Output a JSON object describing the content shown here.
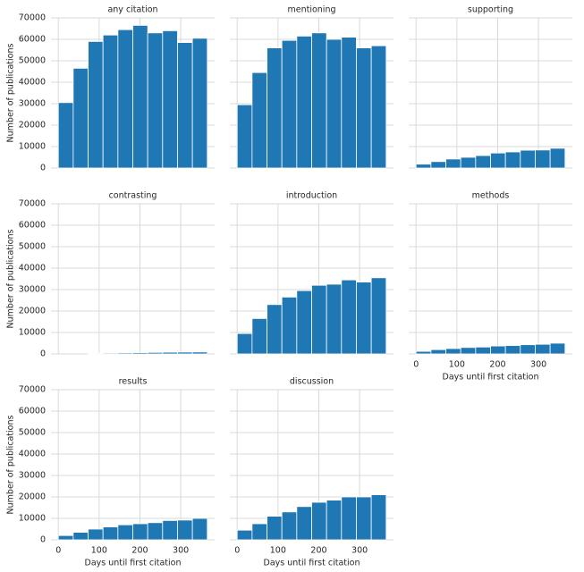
{
  "chart_data": [
    {
      "type": "histogram",
      "title": "any citation",
      "ylabel": "Number of publications",
      "color": "#1f77b4",
      "grid": true,
      "bins": [
        0,
        36.5,
        73,
        109.5,
        146,
        182.5,
        219,
        255.5,
        292,
        328.5,
        365
      ],
      "values": [
        30500,
        46500,
        59000,
        62000,
        64500,
        66500,
        63000,
        64000,
        58500,
        60500
      ],
      "xlim": [
        -18,
        383
      ],
      "ylim": [
        0,
        70000
      ],
      "xticks": [
        0,
        100,
        200,
        300
      ],
      "yticks": [
        0,
        10000,
        20000,
        30000,
        40000,
        50000,
        60000,
        70000
      ]
    },
    {
      "type": "histogram",
      "title": "mentioning",
      "color": "#1f77b4",
      "grid": true,
      "bins": [
        0,
        36.5,
        73,
        109.5,
        146,
        182.5,
        219,
        255.5,
        292,
        328.5,
        365
      ],
      "values": [
        29500,
        44500,
        56000,
        59500,
        61500,
        63000,
        60000,
        61000,
        56000,
        57000
      ],
      "xlim": [
        -18,
        383
      ],
      "ylim": [
        0,
        70000
      ],
      "xticks": [
        0,
        100,
        200,
        300
      ],
      "yticks": [
        0,
        10000,
        20000,
        30000,
        40000,
        50000,
        60000,
        70000
      ]
    },
    {
      "type": "histogram",
      "title": "supporting",
      "color": "#1f77b4",
      "grid": true,
      "bins": [
        0,
        36.5,
        73,
        109.5,
        146,
        182.5,
        219,
        255.5,
        292,
        328.5,
        365
      ],
      "values": [
        1800,
        3000,
        4200,
        5000,
        5800,
        7000,
        7500,
        8300,
        8400,
        9200
      ],
      "xlim": [
        -18,
        383
      ],
      "ylim": [
        0,
        70000
      ],
      "xticks": [
        0,
        100,
        200,
        300
      ],
      "yticks": [
        0,
        10000,
        20000,
        30000,
        40000,
        50000,
        60000,
        70000
      ]
    },
    {
      "type": "histogram",
      "title": "contrasting",
      "ylabel": "Number of publications",
      "color": "#1f77b4",
      "grid": true,
      "bins": [
        0,
        36.5,
        73,
        109.5,
        146,
        182.5,
        219,
        255.5,
        292,
        328.5,
        365
      ],
      "values": [
        0,
        0,
        200,
        400,
        500,
        600,
        700,
        800,
        850,
        900
      ],
      "xlim": [
        -18,
        383
      ],
      "ylim": [
        0,
        70000
      ],
      "xticks": [
        0,
        100,
        200,
        300
      ],
      "yticks": [
        0,
        10000,
        20000,
        30000,
        40000,
        50000,
        60000,
        70000
      ]
    },
    {
      "type": "histogram",
      "title": "introduction",
      "color": "#1f77b4",
      "grid": true,
      "bins": [
        0,
        36.5,
        73,
        109.5,
        146,
        182.5,
        219,
        255.5,
        292,
        328.5,
        365
      ],
      "values": [
        9500,
        16500,
        23000,
        26500,
        29500,
        32000,
        32500,
        34500,
        33500,
        35500
      ],
      "xlim": [
        -18,
        383
      ],
      "ylim": [
        0,
        70000
      ],
      "xticks": [
        0,
        100,
        200,
        300
      ],
      "yticks": [
        0,
        10000,
        20000,
        30000,
        40000,
        50000,
        60000,
        70000
      ]
    },
    {
      "type": "histogram",
      "title": "methods",
      "xlabel": "Days until first citation",
      "color": "#1f77b4",
      "grid": true,
      "bins": [
        0,
        36.5,
        73,
        109.5,
        146,
        182.5,
        219,
        255.5,
        292,
        328.5,
        365
      ],
      "values": [
        1200,
        2000,
        2500,
        3000,
        3200,
        3700,
        3900,
        4300,
        4500,
        5000
      ],
      "xlim": [
        -18,
        383
      ],
      "ylim": [
        0,
        70000
      ],
      "xticks": [
        0,
        100,
        200,
        300
      ],
      "yticks": [
        0,
        10000,
        20000,
        30000,
        40000,
        50000,
        60000,
        70000
      ]
    },
    {
      "type": "histogram",
      "title": "results",
      "ylabel": "Number of publications",
      "xlabel": "Days until first citation",
      "color": "#1f77b4",
      "grid": true,
      "bins": [
        0,
        36.5,
        73,
        109.5,
        146,
        182.5,
        219,
        255.5,
        292,
        328.5,
        365
      ],
      "values": [
        2000,
        3500,
        5000,
        6000,
        7000,
        7500,
        8000,
        9000,
        9200,
        10000
      ],
      "xlim": [
        -18,
        383
      ],
      "ylim": [
        0,
        70000
      ],
      "xticks": [
        0,
        100,
        200,
        300
      ],
      "yticks": [
        0,
        10000,
        20000,
        30000,
        40000,
        50000,
        60000,
        70000
      ]
    },
    {
      "type": "histogram",
      "title": "discussion",
      "xlabel": "Days until first citation",
      "color": "#1f77b4",
      "grid": true,
      "bins": [
        0,
        36.5,
        73,
        109.5,
        146,
        182.5,
        219,
        255.5,
        292,
        328.5,
        365
      ],
      "values": [
        4500,
        7500,
        11000,
        13000,
        15500,
        17500,
        18500,
        20000,
        20000,
        21000
      ],
      "xlim": [
        -18,
        383
      ],
      "ylim": [
        0,
        70000
      ],
      "xticks": [
        0,
        100,
        200,
        300
      ],
      "yticks": [
        0,
        10000,
        20000,
        30000,
        40000,
        50000,
        60000,
        70000
      ]
    }
  ]
}
